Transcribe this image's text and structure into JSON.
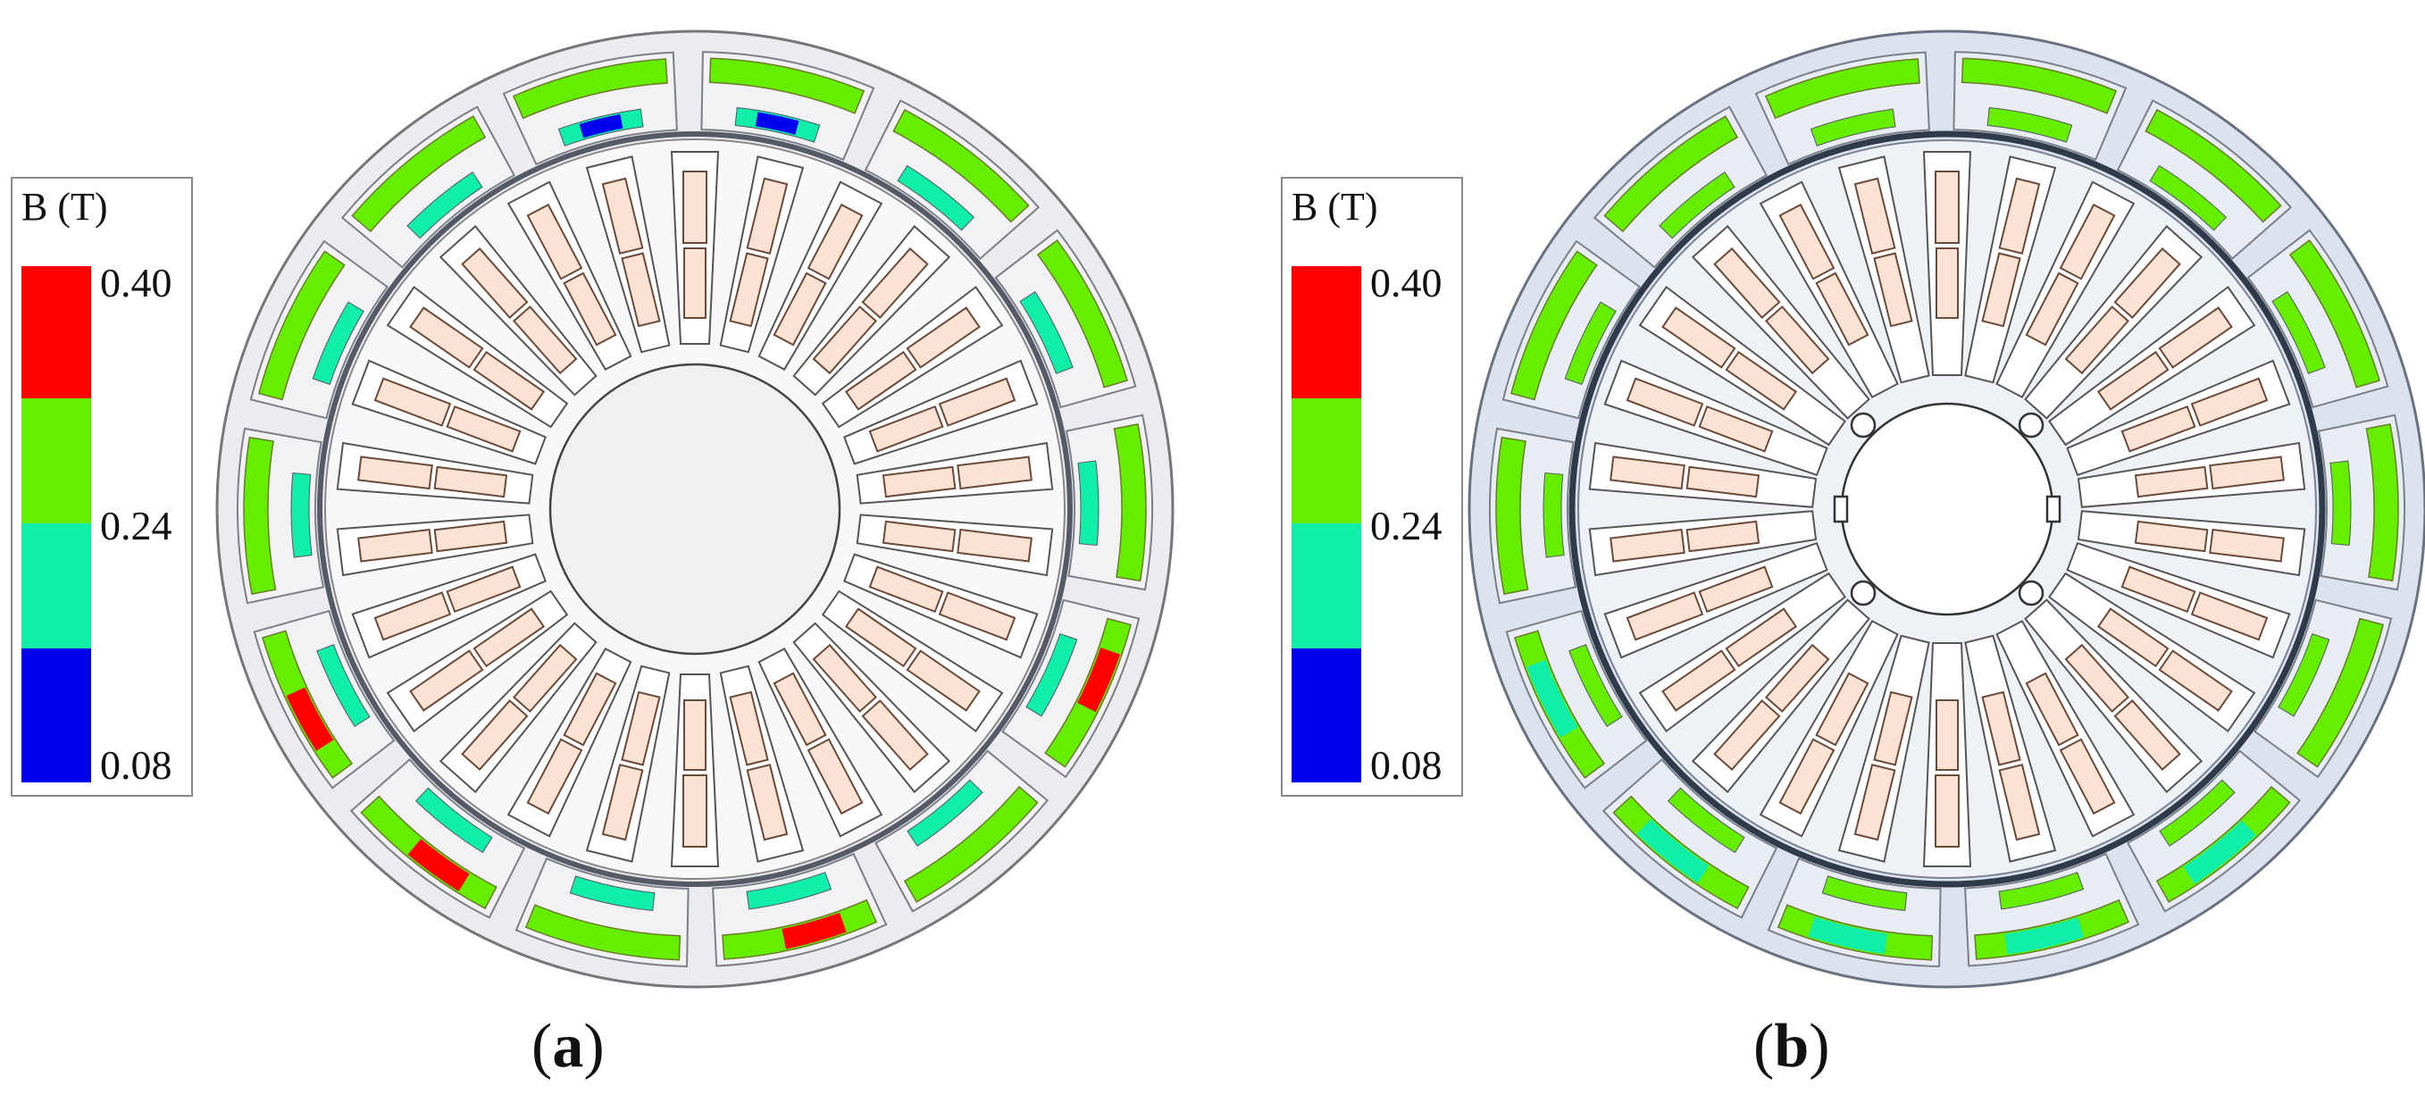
{
  "colors": {
    "level_040": "#ff0000",
    "level_024_upper": "#66ee00",
    "level_024_lower": "#11eeaa",
    "level_008": "#0000ee",
    "housing_a": "#ececf0",
    "housing_b": "#dde3ee",
    "rotor": "#f3f4f7",
    "coil": "#fbe3d3",
    "coil_edge": "#6b4a3a",
    "outline": "#555b66"
  },
  "panel_a": {
    "legend": {
      "title": "B (T)",
      "ticks": [
        "0.40",
        "0.24",
        "0.08"
      ]
    },
    "caption_letter": "a",
    "caption_open": "(",
    "caption_close": ")"
  },
  "panel_b": {
    "legend": {
      "title": "B (T)",
      "ticks": [
        "0.40",
        "0.24",
        "0.08"
      ]
    },
    "caption_letter": "b",
    "caption_open": "(",
    "caption_close": ")"
  }
}
